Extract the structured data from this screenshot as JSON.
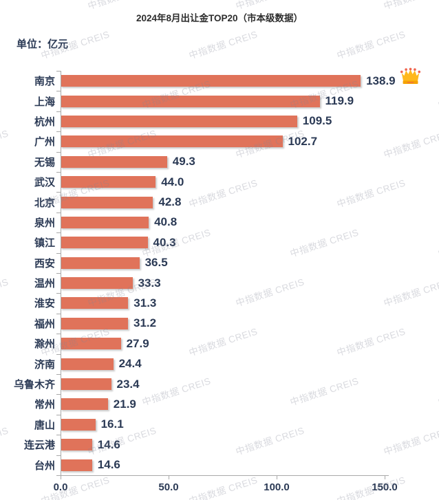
{
  "title": "2024年8月出让金TOP20（市本级数据）",
  "unit_label": "单位：亿元",
  "watermark": "中指数据 CREIS",
  "colors": {
    "bar": "#e0735a",
    "text_navy": "#2b3a55",
    "title_text": "#2d2d2d",
    "axis": "#a8a8a8",
    "watermark": "rgba(128,134,148,0.30)",
    "crown_gold": "#ffb81c",
    "crown_band": "#f5a300",
    "crown_dot": "#f0654e"
  },
  "chart_data": {
    "type": "bar",
    "orientation": "horizontal",
    "title": "2024年8月出让金TOP20（市本级数据）",
    "unit": "亿元",
    "categories": [
      "南京",
      "上海",
      "杭州",
      "广州",
      "无锡",
      "武汉",
      "北京",
      "泉州",
      "镇江",
      "西安",
      "温州",
      "淮安",
      "福州",
      "滁州",
      "济南",
      "乌鲁木齐",
      "常州",
      "唐山",
      "连云港",
      "台州"
    ],
    "values": [
      138.9,
      119.9,
      109.5,
      102.7,
      49.3,
      44.0,
      42.8,
      40.8,
      40.3,
      36.5,
      33.3,
      31.3,
      31.2,
      27.9,
      24.4,
      23.4,
      21.9,
      16.1,
      14.6,
      14.6
    ],
    "value_labels": [
      "138.9",
      "119.9",
      "109.5",
      "102.7",
      "49.3",
      "44.0",
      "42.8",
      "40.8",
      "40.3",
      "36.5",
      "33.3",
      "31.3",
      "31.2",
      "27.9",
      "24.4",
      "23.4",
      "21.9",
      "16.1",
      "14.6",
      "14.6"
    ],
    "xlim": [
      0,
      150
    ],
    "x_ticks": [
      0,
      50,
      100,
      150
    ],
    "x_tick_labels": [
      "0.0",
      "50.0",
      "100.0",
      "150.0"
    ],
    "grid": false,
    "legend": null,
    "annotations": [
      {
        "target": "南京",
        "icon": "crown"
      }
    ]
  }
}
